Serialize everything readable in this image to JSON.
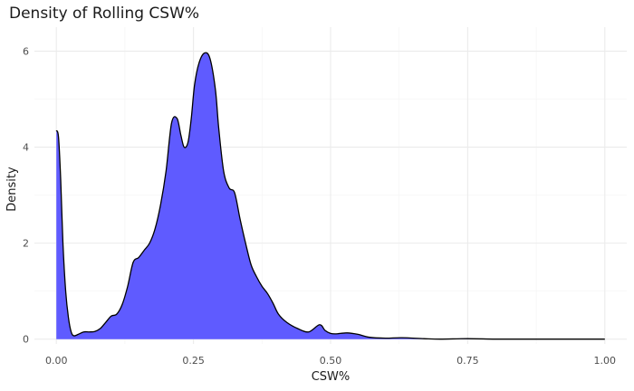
{
  "chart_data": {
    "type": "area",
    "title": "Density of Rolling CSW%",
    "xlabel": "CSW%",
    "ylabel": "Density",
    "xlim": [
      -0.04,
      1.04
    ],
    "ylim": [
      -0.1,
      6.5
    ],
    "x_ticks": [
      0.0,
      0.25,
      0.5,
      0.75,
      1.0
    ],
    "x_tick_labels": [
      "0.00",
      "0.25",
      "0.50",
      "0.75",
      "1.00"
    ],
    "y_ticks": [
      0,
      2,
      4,
      6
    ],
    "y_tick_labels": [
      "0",
      "2",
      "4",
      "6"
    ],
    "grid": true,
    "legend": "none",
    "series": [
      {
        "name": "density",
        "fill": "#5f5bff",
        "line_color": "#000000",
        "x": [
          0.0,
          0.004,
          0.008,
          0.012,
          0.017,
          0.022,
          0.027,
          0.032,
          0.04,
          0.05,
          0.06,
          0.07,
          0.08,
          0.09,
          0.1,
          0.11,
          0.12,
          0.13,
          0.14,
          0.15,
          0.16,
          0.17,
          0.18,
          0.19,
          0.2,
          0.21,
          0.22,
          0.227,
          0.233,
          0.24,
          0.246,
          0.252,
          0.26,
          0.27,
          0.28,
          0.29,
          0.296,
          0.305,
          0.315,
          0.325,
          0.335,
          0.345,
          0.355,
          0.365,
          0.375,
          0.385,
          0.395,
          0.405,
          0.42,
          0.44,
          0.46,
          0.48,
          0.49,
          0.5,
          0.51,
          0.53,
          0.55,
          0.57,
          0.6,
          0.63,
          0.67,
          0.7,
          0.75,
          0.8,
          0.85,
          0.9,
          0.95,
          1.0
        ],
        "y": [
          4.35,
          4.2,
          3.3,
          2.0,
          1.0,
          0.45,
          0.15,
          0.07,
          0.1,
          0.15,
          0.15,
          0.16,
          0.22,
          0.35,
          0.48,
          0.52,
          0.72,
          1.1,
          1.6,
          1.7,
          1.85,
          2.0,
          2.3,
          2.8,
          3.5,
          4.5,
          4.6,
          4.25,
          4.0,
          4.1,
          4.6,
          5.3,
          5.75,
          5.96,
          5.85,
          5.2,
          4.4,
          3.5,
          3.15,
          3.05,
          2.5,
          2.0,
          1.55,
          1.3,
          1.1,
          0.95,
          0.75,
          0.52,
          0.35,
          0.22,
          0.15,
          0.3,
          0.18,
          0.12,
          0.11,
          0.13,
          0.1,
          0.04,
          0.02,
          0.03,
          0.01,
          0.0,
          0.01,
          0.0,
          0.0,
          0.0,
          0.0,
          0.0
        ]
      }
    ]
  }
}
